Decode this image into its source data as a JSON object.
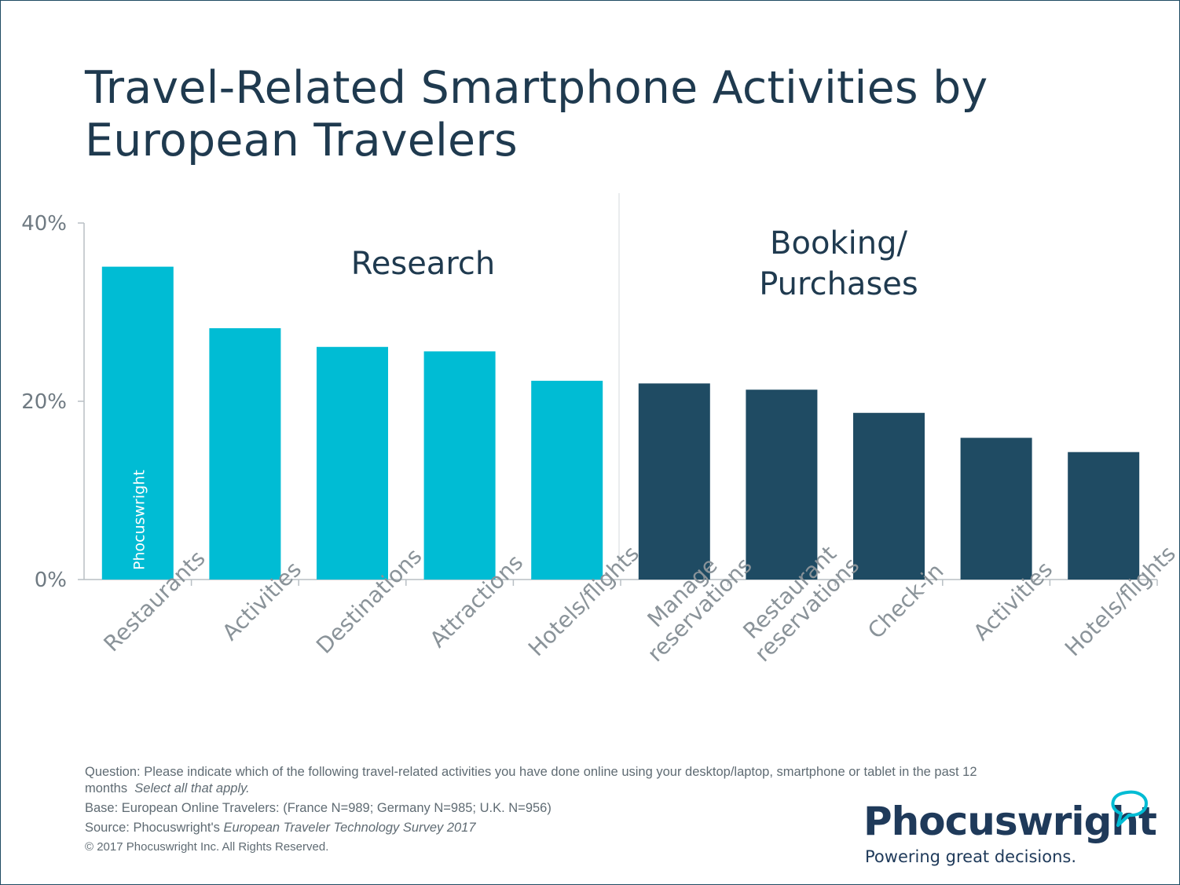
{
  "title": "Travel-Related Smartphone Activities by European Travelers",
  "chart_data": {
    "type": "bar",
    "title": "Travel-Related Smartphone Activities by European Travelers",
    "categories": [
      "Restaurants",
      "Activities",
      "Destinations",
      "Attractions",
      "Hotels/flights",
      "Manage reservations",
      "Restaurant reservations",
      "Check-in",
      "Activities",
      "Hotels/flights"
    ],
    "tick_lines": [
      [
        "Restaurants"
      ],
      [
        "Activities"
      ],
      [
        "Destinations"
      ],
      [
        "Attractions"
      ],
      [
        "Hotels/flights"
      ],
      [
        "Manage",
        "reservations"
      ],
      [
        "Restaurant",
        "reservations"
      ],
      [
        "Check-in"
      ],
      [
        "Activities"
      ],
      [
        "Hotels/flights"
      ]
    ],
    "values": [
      35.1,
      28.2,
      26.1,
      25.6,
      22.3,
      22.0,
      21.3,
      18.7,
      15.9,
      14.3
    ],
    "groups": [
      "Research",
      "Research",
      "Research",
      "Research",
      "Research",
      "Booking/ Purchases",
      "Booking/ Purchases",
      "Booking/ Purchases",
      "Booking/ Purchases",
      "Booking/ Purchases"
    ],
    "group_colors": {
      "Research": "#00bcd4",
      "Booking/ Purchases": "#1f4b63"
    },
    "group_labels": [
      {
        "lines": [
          "Research"
        ]
      },
      {
        "lines": [
          "Booking/",
          "Purchases"
        ]
      }
    ],
    "yticks": [
      "0%",
      "20%",
      "40%"
    ],
    "ytick_values": [
      0,
      20,
      40
    ],
    "ylim": [
      0,
      40
    ],
    "xlabel": "",
    "ylabel": "",
    "legend": "none",
    "grid": false,
    "watermark": "Phocuswright"
  },
  "notes": {
    "question": "Question: Please indicate which of the following travel-related activities you have done online using your desktop/laptop, smartphone or tablet in the past 12 months",
    "question_hint": "Select all that apply.",
    "base": "Base: European Online Travelers: (France N=989; Germany N=985; U.K. N=956)",
    "source_prefix": "Source: Phocuswright's",
    "source_title": "European Traveler Technology Survey 2017",
    "copyright": "© 2017 Phocuswright Inc. All Rights Reserved."
  },
  "logo": {
    "name": "Phocuswright",
    "tagline": "Powering great decisions."
  }
}
